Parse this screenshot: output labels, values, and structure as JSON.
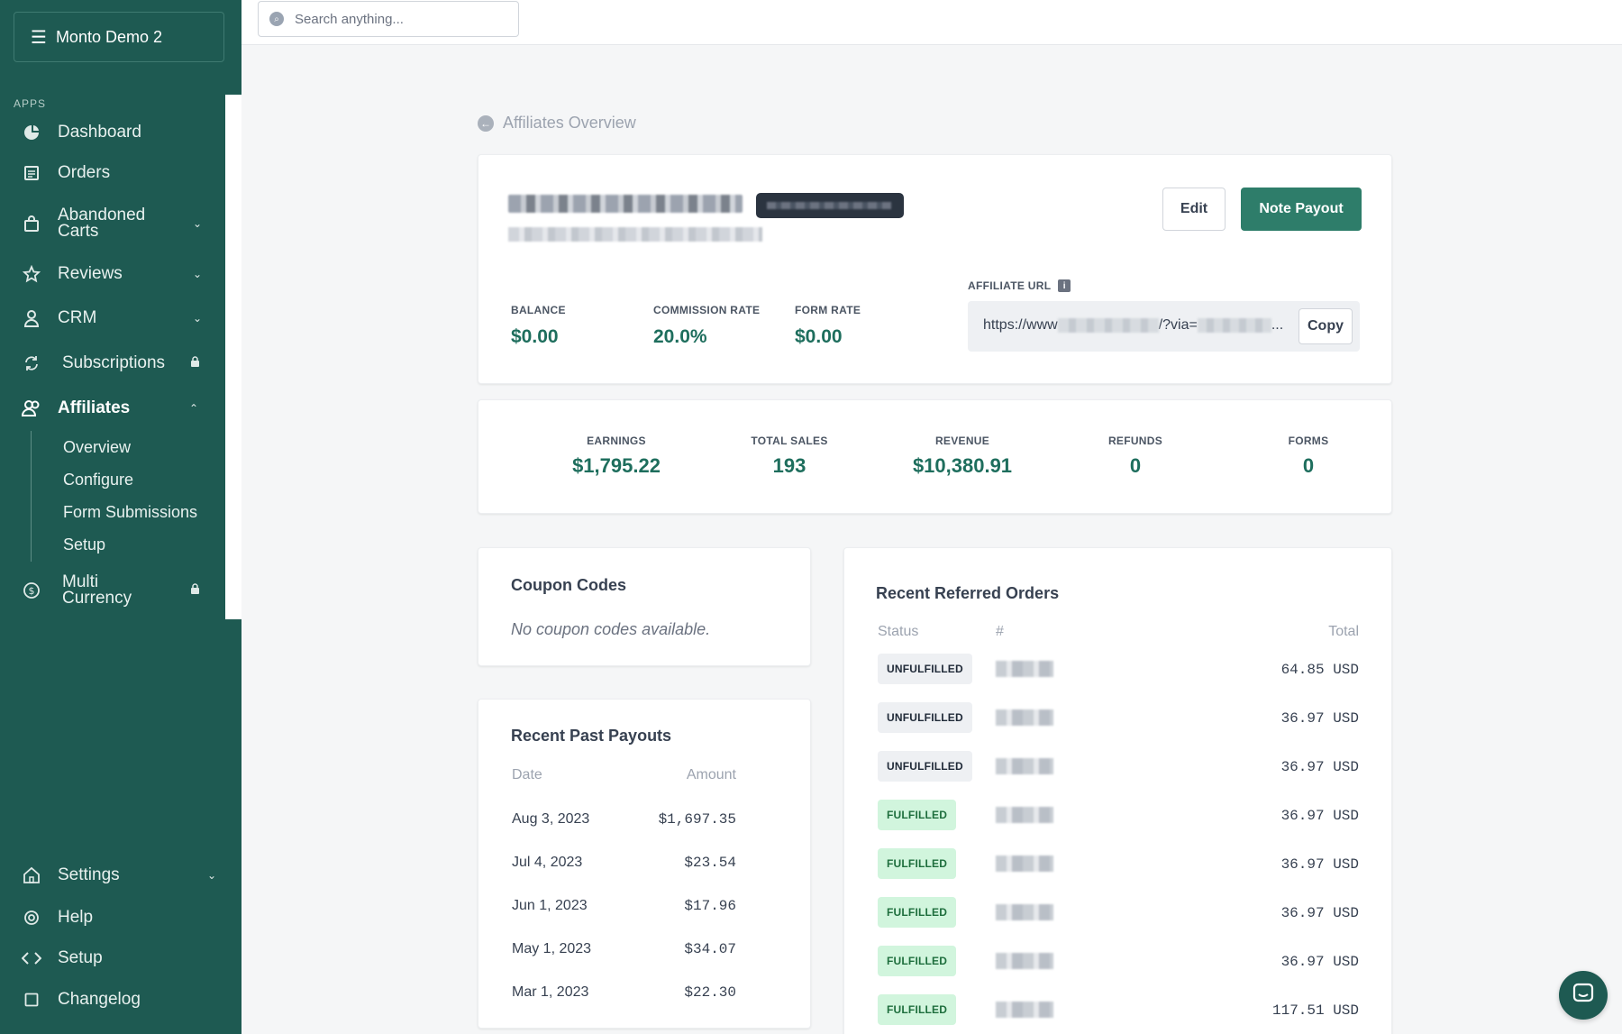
{
  "store": {
    "name": "Monto Demo 2"
  },
  "sidebar": {
    "section_label": "APPS",
    "items": [
      {
        "label": "Dashboard"
      },
      {
        "label": "Orders"
      },
      {
        "label": "Abandoned Carts"
      },
      {
        "label": "Reviews"
      },
      {
        "label": "CRM"
      },
      {
        "label": "Subscriptions"
      },
      {
        "label": "Affiliates"
      },
      {
        "label": "Multi Currency"
      },
      {
        "label": "Settings"
      },
      {
        "label": "Help"
      },
      {
        "label": "Setup"
      },
      {
        "label": "Changelog"
      }
    ],
    "affiliates_sub": [
      "Overview",
      "Configure",
      "Form Submissions",
      "Setup"
    ]
  },
  "search": {
    "placeholder": "Search anything..."
  },
  "page": {
    "back_label": "Affiliates Overview"
  },
  "affiliate": {
    "edit_label": "Edit",
    "payout_label": "Note Payout",
    "balance_label": "BALANCE",
    "balance": "$0.00",
    "commission_label": "COMMISSION RATE",
    "commission": "20.0%",
    "form_rate_label": "FORM RATE",
    "form_rate": "$0.00",
    "url_label": "AFFILIATE URL",
    "url_prefix": "https://www",
    "url_mid": "/?via=",
    "url_suffix": "...",
    "copy_label": "Copy"
  },
  "metrics": [
    {
      "label": "EARNINGS",
      "value": "$1,795.22"
    },
    {
      "label": "TOTAL SALES",
      "value": "193"
    },
    {
      "label": "REVENUE",
      "value": "$10,380.91"
    },
    {
      "label": "REFUNDS",
      "value": "0"
    },
    {
      "label": "FORMS",
      "value": "0"
    }
  ],
  "coupons": {
    "title": "Coupon Codes",
    "empty": "No coupon codes available."
  },
  "payouts": {
    "title": "Recent Past Payouts",
    "col_date": "Date",
    "col_amount": "Amount",
    "rows": [
      {
        "date": "Aug 3, 2023",
        "amount": "$1,697.35"
      },
      {
        "date": "Jul 4, 2023",
        "amount": "$23.54"
      },
      {
        "date": "Jun 1, 2023",
        "amount": "$17.96"
      },
      {
        "date": "May 1, 2023",
        "amount": "$34.07"
      },
      {
        "date": "Mar 1, 2023",
        "amount": "$22.30"
      }
    ]
  },
  "orders": {
    "title": "Recent Referred Orders",
    "col_status": "Status",
    "col_num": "#",
    "col_total": "Total",
    "rows": [
      {
        "status": "UNFULFILLED",
        "total": "64.85 USD"
      },
      {
        "status": "UNFULFILLED",
        "total": "36.97 USD"
      },
      {
        "status": "UNFULFILLED",
        "total": "36.97 USD"
      },
      {
        "status": "FULFILLED",
        "total": "36.97 USD"
      },
      {
        "status": "FULFILLED",
        "total": "36.97 USD"
      },
      {
        "status": "FULFILLED",
        "total": "36.97 USD"
      },
      {
        "status": "FULFILLED",
        "total": "36.97 USD"
      },
      {
        "status": "FULFILLED",
        "total": "117.51 USD"
      }
    ]
  },
  "colors": {
    "sidebar_bg": "#1e5a52",
    "accent": "#2e7d6a",
    "value_green": "#1e6e5d",
    "fulfilled_bg": "#d1f5dd"
  }
}
